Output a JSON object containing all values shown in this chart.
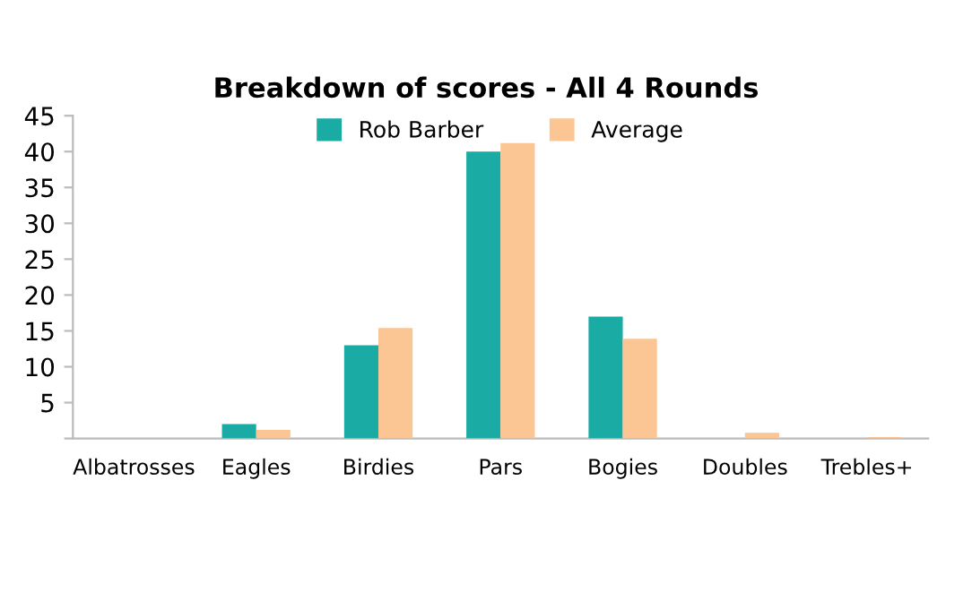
{
  "chart_data": {
    "type": "bar",
    "title": "Breakdown of scores - All 4 Rounds",
    "categories": [
      "Albatrosses",
      "Eagles",
      "Birdies",
      "Pars",
      "Bogies",
      "Doubles",
      "Trebles+"
    ],
    "series": [
      {
        "name": "Rob Barber",
        "color": "#1aaba4",
        "values": [
          0,
          2,
          13,
          40,
          17,
          0,
          0
        ]
      },
      {
        "name": "Average",
        "color": "#fbc594",
        "values": [
          0,
          1.2,
          15.4,
          41.2,
          13.9,
          0.8,
          0.2
        ]
      }
    ],
    "ylim": [
      0,
      45
    ],
    "yticks": [
      {
        "value": 0,
        "label": null
      },
      5,
      10,
      15,
      20,
      25,
      30,
      35,
      40,
      45
    ],
    "grid": false,
    "legend": "top"
  }
}
